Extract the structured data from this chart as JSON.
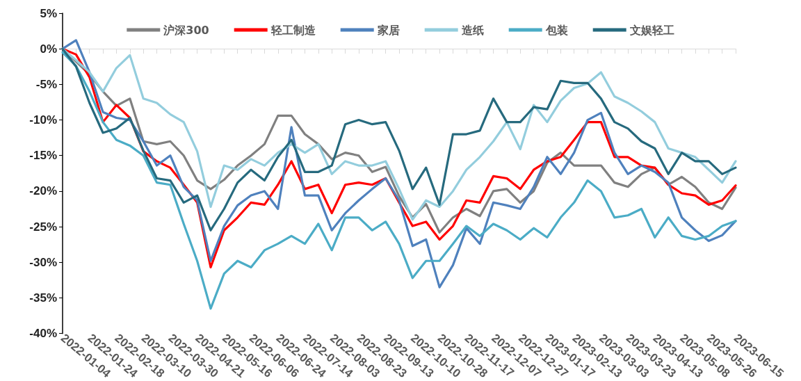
{
  "chart_data": {
    "type": "line",
    "legend": "top",
    "categories": [
      "2022-01-04",
      null,
      "2022-01-24",
      null,
      "2022-02-18",
      null,
      "2022-03-10",
      null,
      "2022-03-30",
      null,
      "2022-04-21",
      null,
      "2022-05-16",
      null,
      "2022-06-06",
      null,
      "2022-06-24",
      null,
      "2022-07-14",
      null,
      "2022-08-03",
      null,
      "2022-08-23",
      null,
      "2022-09-13",
      null,
      "2022-10-10",
      null,
      "2022-10-28",
      null,
      "2022-11-17",
      null,
      "2022-12-07",
      null,
      "2022-12-27",
      null,
      "2023-01-17",
      null,
      "2023-02-13",
      null,
      "2023-03-03",
      null,
      "2023-03-23",
      null,
      "2023-04-13",
      null,
      "2023-05-08",
      null,
      "2023-05-26",
      null,
      "2023-06-15"
    ],
    "ylim": [
      -40,
      5
    ],
    "yticks": [
      {
        "value": -40,
        "label": "-40%"
      },
      {
        "value": -35,
        "label": "-35%"
      },
      {
        "value": -30,
        "label": "-30%"
      },
      {
        "value": -25,
        "label": "-25%"
      },
      {
        "value": -20,
        "label": "-20%"
      },
      {
        "value": -15,
        "label": "-15%"
      },
      {
        "value": -10,
        "label": "-10%"
      },
      {
        "value": -5,
        "label": "-5%"
      },
      {
        "value": 0,
        "label": "0%"
      },
      {
        "value": 5,
        "label": "5%"
      }
    ],
    "series": [
      {
        "name": "沪深300",
        "color": "#808080",
        "values": [
          0,
          -1.8,
          -3.6,
          -6,
          -8,
          -7,
          -13,
          -13.4,
          -13,
          -15,
          -18.5,
          -19.7,
          -18.4,
          -16.4,
          -15,
          -13.4,
          -9.4,
          -9.4,
          -12,
          -13.4,
          -15.5,
          -14.6,
          -15,
          -17.3,
          -16.6,
          -20.7,
          -23.7,
          -21.8,
          -25.8,
          -23.7,
          -22.5,
          -23.5,
          -20,
          -19.7,
          -21.6,
          -20,
          -16,
          -14.6,
          -16.4,
          -16.4,
          -16.4,
          -18.8,
          -19.4,
          -17.6,
          -16.7,
          -19.1,
          -18,
          -19.4,
          -21.6,
          -22.5,
          -19.5
        ]
      },
      {
        "name": "轻工制造",
        "color": "#ff0000",
        "values": [
          0,
          -0.8,
          -4,
          -10.3,
          -7.9,
          -9.7,
          -14.4,
          -15.8,
          -16.7,
          -19.1,
          -21.6,
          -30.7,
          -25.5,
          -23.7,
          -21.6,
          -21.9,
          -19.1,
          -15.8,
          -19.7,
          -19.1,
          -23.1,
          -19.1,
          -18.8,
          -19.1,
          -18.2,
          -21.6,
          -24.9,
          -24.3,
          -26.8,
          -24.9,
          -21.3,
          -21.6,
          -17.9,
          -18.2,
          -19.7,
          -17,
          -15.8,
          -15.2,
          -12.8,
          -10.3,
          -10.3,
          -15.2,
          -15.2,
          -16.4,
          -16.7,
          -19.1,
          -20.3,
          -20.6,
          -21.9,
          -21.3,
          -19.2
        ]
      },
      {
        "name": "家居",
        "color": "#4f81bd",
        "values": [
          0,
          1.2,
          -3.3,
          -8.9,
          -9.7,
          -10,
          -13,
          -16.4,
          -15,
          -19.4,
          -21.3,
          -29.8,
          -24.9,
          -22,
          -20.6,
          -20,
          -22.5,
          -11,
          -20.6,
          -20.6,
          -25.5,
          -23.1,
          -21.3,
          -19.7,
          -18.2,
          -21.3,
          -27.7,
          -26.8,
          -33.5,
          -30.4,
          -25.2,
          -27.4,
          -21.6,
          -22,
          -22.5,
          -19.4,
          -15.2,
          -17.6,
          -14.6,
          -10,
          -9,
          -14.6,
          -17.6,
          -16.4,
          -17.3,
          -18.8,
          -23.7,
          -25.5,
          -27,
          -26.2,
          -24.2
        ]
      },
      {
        "name": "造纸",
        "color": "#93cddd",
        "values": [
          0,
          -1.6,
          -3.3,
          -6,
          -2.7,
          -0.9,
          -7,
          -7.6,
          -9.2,
          -10.3,
          -14.4,
          -22.2,
          -16.4,
          -17,
          -15.5,
          -16.4,
          -14.6,
          -13.4,
          -14.6,
          -13.4,
          -17.6,
          -15.8,
          -16.4,
          -16.4,
          -15.8,
          -19.7,
          -24,
          -21.3,
          -22.2,
          -20,
          -17,
          -15.2,
          -13,
          -10.3,
          -14.1,
          -7.9,
          -10.3,
          -7.3,
          -5.5,
          -4.9,
          -3.3,
          -6.7,
          -7.6,
          -8.8,
          -10.3,
          -14,
          -14.6,
          -15.2,
          -17,
          -18.8,
          -15.8
        ]
      },
      {
        "name": "包装",
        "color": "#4bacc6",
        "values": [
          -0.5,
          -2.4,
          -6,
          -10.3,
          -12.8,
          -13.6,
          -15,
          -18.8,
          -19.1,
          -24.6,
          -29.8,
          -36.5,
          -31.6,
          -29.8,
          -30.7,
          -28.3,
          -27.4,
          -26.3,
          -27.4,
          -24.6,
          -28.3,
          -23.7,
          -23.7,
          -25.5,
          -24.3,
          -27.4,
          -32.2,
          -29.8,
          -29.8,
          -27.4,
          -24.9,
          -26.3,
          -24.6,
          -25.5,
          -26.8,
          -25.2,
          -26.5,
          -23.7,
          -21.6,
          -18.5,
          -20,
          -23.7,
          -23.4,
          -22.5,
          -26.5,
          -23.7,
          -26.3,
          -26.8,
          -26.3,
          -24.9,
          -24.2
        ]
      },
      {
        "name": "文娱轻工",
        "color": "#266a7e",
        "values": [
          0,
          -2.5,
          -7.6,
          -11.8,
          -11.2,
          -9.7,
          -14.3,
          -18.2,
          -18.5,
          -21.6,
          -20.6,
          -25.5,
          -22.5,
          -18.8,
          -17,
          -18.5,
          -15.2,
          -12.8,
          -17.3,
          -17.3,
          -16.4,
          -10.6,
          -10,
          -10.6,
          -10.3,
          -14.3,
          -19.7,
          -16.7,
          -21.9,
          -12,
          -12,
          -11.5,
          -7,
          -10.3,
          -10.3,
          -8.2,
          -8.5,
          -4.5,
          -4.8,
          -4.8,
          -7,
          -10.3,
          -11.2,
          -13,
          -14,
          -17.6,
          -14.6,
          -15.8,
          -15.8,
          -17.6,
          -16.7
        ]
      }
    ]
  }
}
